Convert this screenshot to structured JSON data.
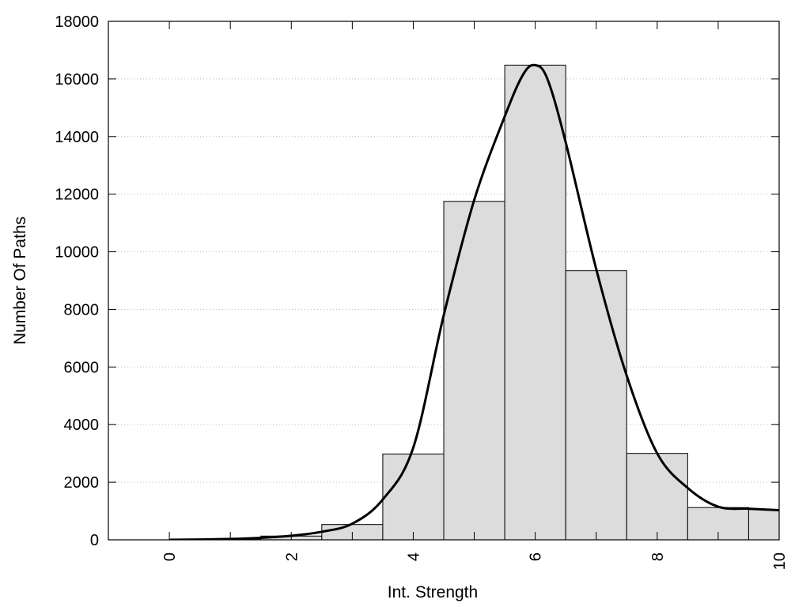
{
  "chart_data": {
    "type": "bar",
    "title": "",
    "xlabel": "Int. Strength",
    "ylabel": "Number Of Paths",
    "xlim": [
      -1,
      10
    ],
    "ylim": [
      0,
      18000
    ],
    "x_ticks": [
      0,
      2,
      4,
      6,
      8,
      10
    ],
    "x_tick_labels": [
      "0",
      "2",
      "4",
      "6",
      "8",
      "10"
    ],
    "y_ticks": [
      0,
      2000,
      4000,
      6000,
      8000,
      10000,
      12000,
      14000,
      16000,
      18000
    ],
    "y_tick_labels": [
      "0",
      "2000",
      "4000",
      "6000",
      "8000",
      "10000",
      "12000",
      "14000",
      "16000",
      "18000"
    ],
    "grid": "horizontal dotted",
    "legend": "none",
    "bin_width": 1,
    "bins": [
      {
        "x": 0,
        "value": 0
      },
      {
        "x": 1,
        "value": 30
      },
      {
        "x": 2,
        "value": 130
      },
      {
        "x": 3,
        "value": 530
      },
      {
        "x": 4,
        "value": 2980
      },
      {
        "x": 5,
        "value": 11750
      },
      {
        "x": 6,
        "value": 16480
      },
      {
        "x": 7,
        "value": 9340
      },
      {
        "x": 8,
        "value": 3000
      },
      {
        "x": 9,
        "value": 1120
      },
      {
        "x": 10,
        "value": 1050
      }
    ],
    "curve": {
      "x": [
        0,
        0.5,
        1,
        1.5,
        2,
        2.5,
        3,
        3.5,
        4,
        4.5,
        5,
        5.5,
        5.8,
        6,
        6.2,
        6.5,
        7,
        7.5,
        8,
        8.5,
        9,
        9.5,
        10
      ],
      "y": [
        0,
        10,
        30,
        70,
        140,
        280,
        560,
        1400,
        3200,
        7800,
        11800,
        14700,
        16150,
        16480,
        16000,
        13800,
        9400,
        5700,
        3000,
        1800,
        1150,
        1080,
        1030
      ]
    },
    "colors": {
      "bar_fill": "#dcdcdc",
      "bar_stroke": "#000000",
      "curve": "#000000",
      "grid": "#bbbbbb"
    }
  }
}
